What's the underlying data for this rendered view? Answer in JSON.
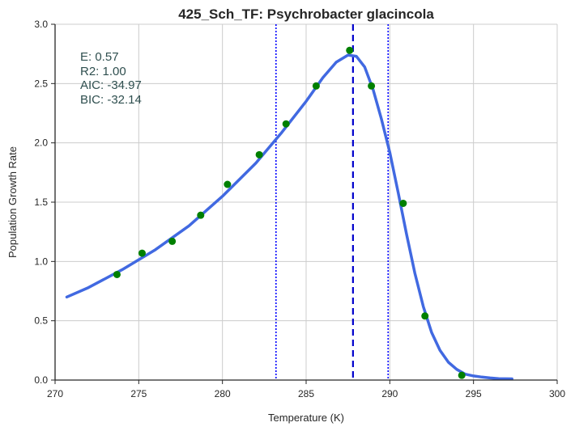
{
  "chart_data": {
    "type": "scatter",
    "title": "425_Sch_TF: Psychrobacter glacincola",
    "xlabel": "Temperature (K)",
    "ylabel": "Population Growth Rate",
    "xlim": [
      270,
      300
    ],
    "ylim": [
      0.0,
      3.0
    ],
    "xticks": [
      270,
      275,
      280,
      285,
      290,
      295,
      300
    ],
    "xtick_labels": [
      "270",
      "275",
      "280",
      "285",
      "290",
      "295",
      "300"
    ],
    "yticks": [
      0.0,
      0.5,
      1.0,
      1.5,
      2.0,
      2.5,
      3.0
    ],
    "ytick_labels": [
      "0.0",
      "0.5",
      "1.0",
      "1.5",
      "2.0",
      "2.5",
      "3.0"
    ],
    "grid": true,
    "series": [
      {
        "kind": "scatter",
        "color": "#008000",
        "x": [
          273.7,
          275.2,
          277.0,
          278.7,
          280.3,
          282.2,
          283.8,
          285.6,
          287.6,
          288.9,
          290.8,
          292.1,
          294.3
        ],
        "y": [
          0.89,
          1.07,
          1.17,
          1.39,
          1.65,
          1.9,
          2.16,
          2.48,
          2.78,
          2.48,
          1.49,
          0.54,
          0.04
        ]
      },
      {
        "kind": "line",
        "color": "#4169e1",
        "x": [
          270.7,
          272,
          274,
          276,
          278,
          280,
          282,
          283.5,
          285,
          286,
          286.8,
          287.5,
          288.0,
          288.5,
          289.0,
          289.5,
          290.0,
          290.5,
          291.0,
          291.5,
          292.0,
          292.5,
          293.0,
          293.5,
          294.0,
          294.5,
          295.0,
          295.5,
          296.0,
          296.5,
          297.3
        ],
        "y": [
          0.7,
          0.78,
          0.93,
          1.1,
          1.3,
          1.55,
          1.83,
          2.08,
          2.35,
          2.55,
          2.68,
          2.74,
          2.73,
          2.64,
          2.45,
          2.2,
          1.92,
          1.58,
          1.23,
          0.9,
          0.62,
          0.4,
          0.25,
          0.15,
          0.09,
          0.05,
          0.035,
          0.025,
          0.018,
          0.012,
          0.01
        ]
      }
    ],
    "vlines": [
      {
        "x": 287.8,
        "style": "dashed",
        "color": "#0000cc"
      },
      {
        "x": 283.2,
        "style": "dotted",
        "color": "#0000ff"
      },
      {
        "x": 289.9,
        "style": "dotted",
        "color": "#0000ff"
      }
    ],
    "annotation": {
      "color": "#2f4f4f",
      "lines": [
        "E:  0.57",
        "R2:  1.00",
        "AIC: -34.97",
        "BIC: -32.14"
      ]
    }
  }
}
